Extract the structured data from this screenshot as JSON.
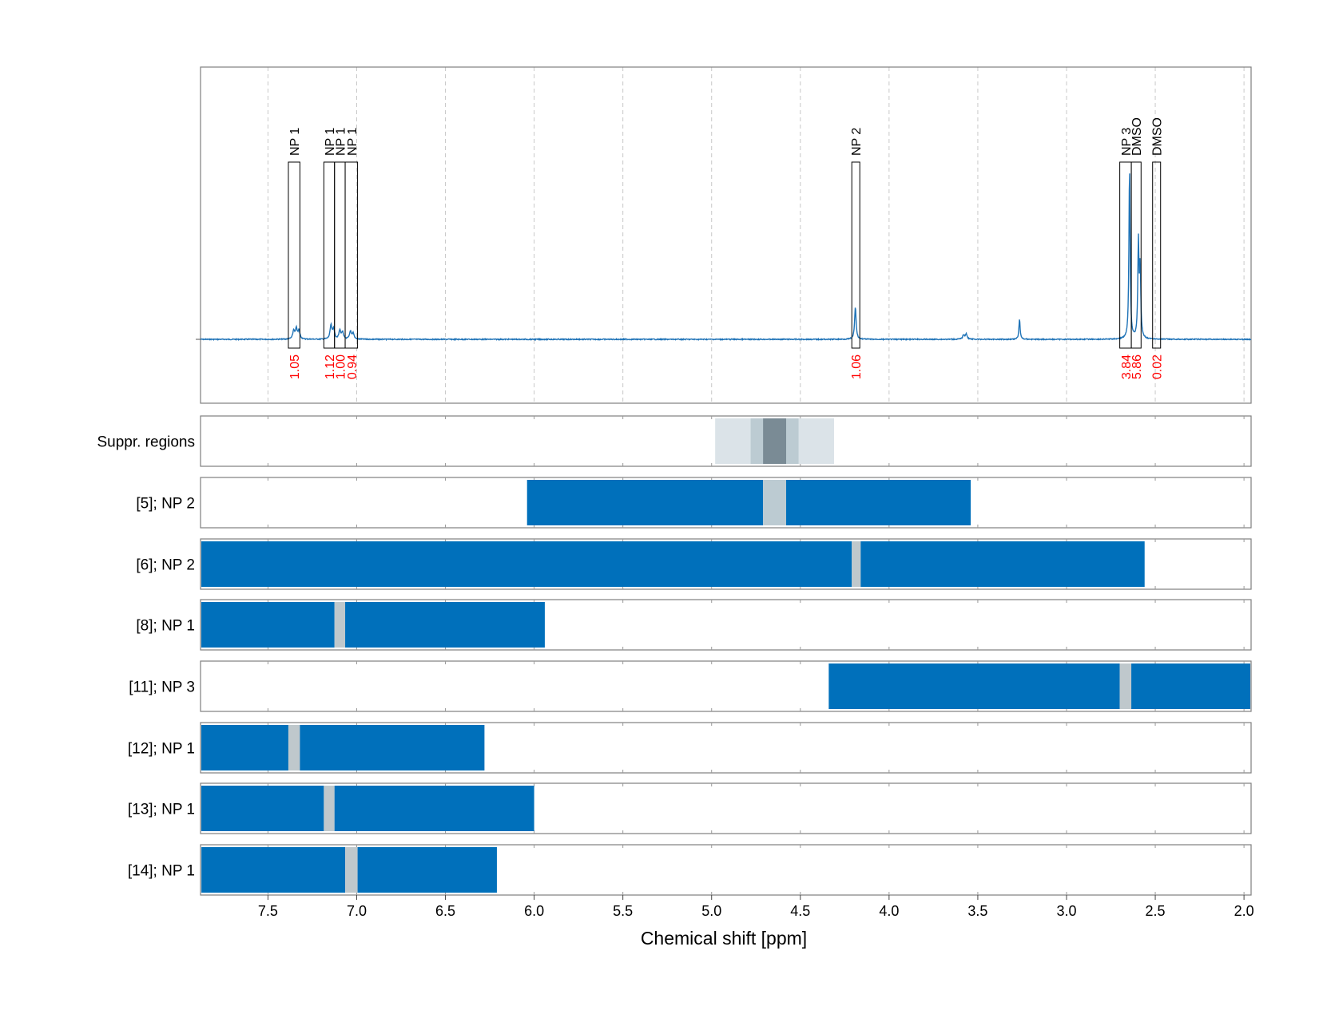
{
  "chart_data": {
    "type": "nmr-spectrum-with-interval-tracks",
    "xlabel": "Chemical shift [ppm]",
    "xlim": [
      7.88,
      1.96
    ],
    "xticks": [
      7.5,
      7.0,
      6.5,
      6.0,
      5.5,
      5.0,
      4.5,
      4.0,
      3.5,
      3.0,
      2.5,
      2.0
    ],
    "xtick_labels": [
      "7.5",
      "7.0",
      "6.5",
      "6.0",
      "5.5",
      "5.0",
      "4.5",
      "4.0",
      "3.5",
      "3.0",
      "2.5",
      "2.0"
    ],
    "grid": "vertical dashed",
    "spectrum": {
      "color": "#1f73b7",
      "baseline_level": 0.0,
      "peaks": [
        {
          "ppm": 7.355,
          "height": 0.05,
          "width": 0.006
        },
        {
          "ppm": 7.34,
          "height": 0.06,
          "width": 0.006
        },
        {
          "ppm": 7.325,
          "height": 0.05,
          "width": 0.006
        },
        {
          "ppm": 7.145,
          "height": 0.08,
          "width": 0.006
        },
        {
          "ppm": 7.13,
          "height": 0.06,
          "width": 0.006
        },
        {
          "ppm": 7.095,
          "height": 0.05,
          "width": 0.006
        },
        {
          "ppm": 7.08,
          "height": 0.04,
          "width": 0.006
        },
        {
          "ppm": 7.035,
          "height": 0.045,
          "width": 0.006
        },
        {
          "ppm": 7.02,
          "height": 0.035,
          "width": 0.006
        },
        {
          "ppm": 4.19,
          "height": 0.19,
          "width": 0.005
        },
        {
          "ppm": 3.58,
          "height": 0.025,
          "width": 0.006
        },
        {
          "ppm": 3.565,
          "height": 0.03,
          "width": 0.006
        },
        {
          "ppm": 3.265,
          "height": 0.12,
          "width": 0.004
        },
        {
          "ppm": 2.645,
          "height": 1.0,
          "width": 0.004
        },
        {
          "ppm": 2.595,
          "height": 0.56,
          "width": 0.004
        },
        {
          "ppm": 2.585,
          "height": 0.4,
          "width": 0.004
        }
      ]
    },
    "annotations": [
      {
        "label": "NP 1",
        "ppm_left": 7.385,
        "ppm_right": 7.32,
        "integral": "1.05"
      },
      {
        "label": "NP 1",
        "ppm_left": 7.185,
        "ppm_right": 7.125,
        "integral": "1.12"
      },
      {
        "label": "NP 1",
        "ppm_left": 7.125,
        "ppm_right": 7.065,
        "integral": "1.00"
      },
      {
        "label": "NP 1",
        "ppm_left": 7.065,
        "ppm_right": 6.995,
        "integral": "0.94"
      },
      {
        "label": "NP 2",
        "ppm_left": 4.21,
        "ppm_right": 4.165,
        "integral": "1.06"
      },
      {
        "label": "NP 3",
        "ppm_left": 2.7,
        "ppm_right": 2.635,
        "integral": "3.84"
      },
      {
        "label": "DMSO",
        "ppm_left": 2.635,
        "ppm_right": 2.58,
        "integral": "5.86"
      },
      {
        "label": "DMSO",
        "ppm_left": 2.515,
        "ppm_right": 2.47,
        "integral": "0.02"
      }
    ],
    "tracks": [
      {
        "label": "Suppr. regions",
        "type": "suppression",
        "segments": [
          {
            "from": 4.98,
            "to": 4.31,
            "color": "#dbe3e8"
          },
          {
            "from": 4.78,
            "to": 4.51,
            "color": "#bccbd2"
          },
          {
            "from": 4.71,
            "to": 4.58,
            "color": "#7a8b95"
          }
        ]
      },
      {
        "label": "[5]; NP 2",
        "segments": [
          {
            "from": 6.04,
            "to": 4.71,
            "color": "#0070bb"
          },
          {
            "from": 4.71,
            "to": 4.58,
            "color": "#bccbd2"
          },
          {
            "from": 4.58,
            "to": 3.54,
            "color": "#0070bb"
          }
        ]
      },
      {
        "label": "[6]; NP 2",
        "segments": [
          {
            "from": 7.88,
            "to": 4.21,
            "color": "#0070bb"
          },
          {
            "from": 4.21,
            "to": 4.16,
            "color": "#bfc8cc"
          },
          {
            "from": 4.16,
            "to": 2.56,
            "color": "#0070bb"
          }
        ]
      },
      {
        "label": "[8]; NP 1",
        "segments": [
          {
            "from": 7.88,
            "to": 7.125,
            "color": "#0070bb"
          },
          {
            "from": 7.125,
            "to": 7.065,
            "color": "#bfc8cc"
          },
          {
            "from": 7.065,
            "to": 5.94,
            "color": "#0070bb"
          }
        ]
      },
      {
        "label": "[11]; NP 3",
        "segments": [
          {
            "from": 4.34,
            "to": 2.7,
            "color": "#0070bb"
          },
          {
            "from": 2.7,
            "to": 2.635,
            "color": "#bfc8cc"
          },
          {
            "from": 2.635,
            "to": 1.96,
            "color": "#0070bb"
          }
        ]
      },
      {
        "label": "[12]; NP 1",
        "segments": [
          {
            "from": 7.88,
            "to": 7.385,
            "color": "#0070bb"
          },
          {
            "from": 7.385,
            "to": 7.32,
            "color": "#bfc8cc"
          },
          {
            "from": 7.32,
            "to": 6.28,
            "color": "#0070bb"
          }
        ]
      },
      {
        "label": "[13]; NP 1",
        "segments": [
          {
            "from": 7.88,
            "to": 7.185,
            "color": "#0070bb"
          },
          {
            "from": 7.185,
            "to": 7.125,
            "color": "#bfc8cc"
          },
          {
            "from": 7.125,
            "to": 6.0,
            "color": "#0070bb"
          }
        ]
      },
      {
        "label": "[14]; NP 1",
        "segments": [
          {
            "from": 7.875,
            "to": 7.065,
            "color": "#0070bb"
          },
          {
            "from": 7.065,
            "to": 6.995,
            "color": "#bfc8cc"
          },
          {
            "from": 6.995,
            "to": 6.21,
            "color": "#0070bb"
          }
        ]
      }
    ],
    "colors": {
      "spectrum": "#1f73b7",
      "integral_text": "#ff0000",
      "frame": "#7f7f7f",
      "grid": "#c8c8c8"
    }
  }
}
